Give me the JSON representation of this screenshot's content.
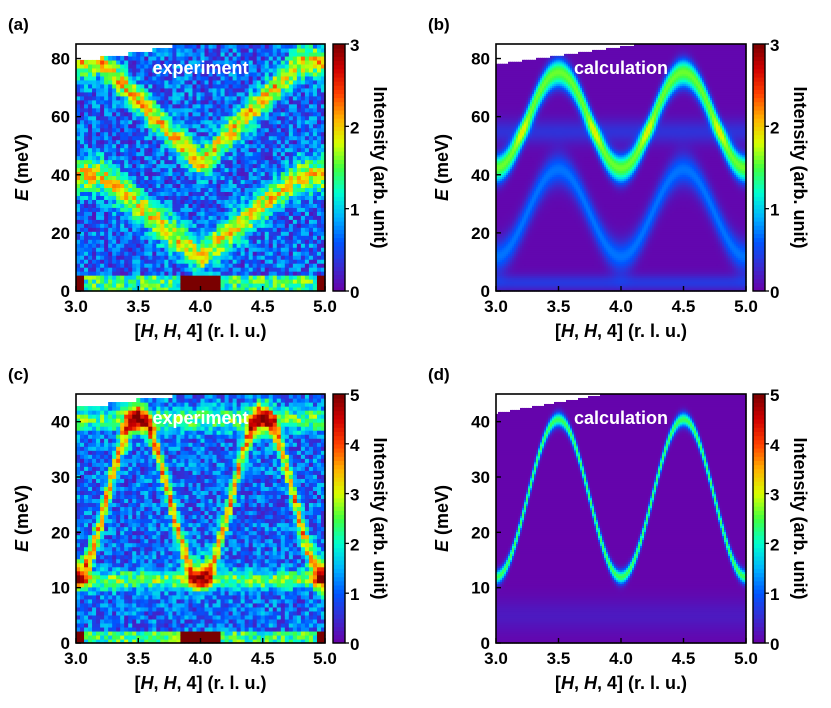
{
  "chart_data": [
    {
      "type": "heatmap",
      "panel_label": "(a)",
      "inset_label": "experiment",
      "xlim": [
        3.0,
        5.0
      ],
      "ylim": [
        0,
        85
      ],
      "xticks": [
        "3.0",
        "3.5",
        "4.0",
        "4.5",
        "5.0"
      ],
      "xtick_values": [
        3.0,
        3.5,
        4.0,
        4.5,
        5.0
      ],
      "yticks": [
        "0",
        "20",
        "40",
        "60",
        "80"
      ],
      "ytick_values": [
        0,
        20,
        40,
        60,
        80
      ],
      "xlabel_parts": [
        "[",
        "H",
        ", ",
        "H",
        ", 4] (r. l. u.)"
      ],
      "ylabel_parts": [
        "E",
        " (meV)"
      ],
      "colorbar": {
        "label": "Intensity (arb. unit)",
        "range": [
          0,
          3
        ],
        "ticks": [
          "0",
          "1",
          "2",
          "3"
        ],
        "tick_values": [
          0,
          1,
          2,
          3
        ]
      },
      "top_limit_curve": {
        "x": [
          3.0,
          3.25,
          3.5,
          3.75,
          3.85
        ],
        "y": [
          79,
          80.5,
          82,
          84,
          85
        ]
      },
      "branches": [
        {
          "shape": "v",
          "min_energy": 44,
          "max_energy": 79,
          "width_meV": 3.5,
          "peak_intensity": 1.4
        },
        {
          "shape": "v",
          "min_energy": 12,
          "max_energy": 40,
          "width_meV": 4,
          "peak_intensity": 1.3
        }
      ],
      "background_intensity": 0.45,
      "noise": 0.9,
      "elastic_line": {
        "max_energy": 5,
        "intensity": 3.0
      }
    },
    {
      "type": "heatmap",
      "panel_label": "(b)",
      "inset_label": "calculation",
      "xlim": [
        3.0,
        5.0
      ],
      "ylim": [
        0,
        85
      ],
      "xticks": [
        "3.0",
        "3.5",
        "4.0",
        "4.5",
        "5.0"
      ],
      "xtick_values": [
        3.0,
        3.5,
        4.0,
        4.5,
        5.0
      ],
      "yticks": [
        "0",
        "20",
        "40",
        "60",
        "80"
      ],
      "ytick_values": [
        0,
        20,
        40,
        60,
        80
      ],
      "xlabel_parts": [
        "[",
        "H",
        ", ",
        "H",
        ", 4] (r. l. u.)"
      ],
      "ylabel_parts": [
        "E",
        " (meV)"
      ],
      "colorbar": {
        "label": "Intensity (arb. unit)",
        "range": [
          0,
          3
        ],
        "ticks": [
          "0",
          "1",
          "2",
          "3"
        ],
        "tick_values": [
          0,
          1,
          2,
          3
        ]
      },
      "top_limit_curve": {
        "x": [
          3.0,
          3.5,
          4.0,
          4.5,
          5.0
        ],
        "y": [
          78,
          81,
          84,
          87,
          90
        ]
      },
      "branches": [
        {
          "shape": "cos",
          "min_energy": 44,
          "max_energy": 77,
          "width_meV": 2.5,
          "peak_intensity": 1.15
        },
        {
          "shape": "cos",
          "min_energy": 40,
          "max_energy": 73,
          "width_meV": 2.5,
          "peak_intensity": 0.95
        },
        {
          "shape": "cos",
          "min_energy": 12,
          "max_energy": 42,
          "width_meV": 4,
          "peak_intensity": 0.65
        },
        {
          "shape": "flat",
          "energy": 55,
          "width_meV": 3,
          "peak_intensity": 0.3
        },
        {
          "shape": "flat",
          "energy": 3,
          "width_meV": 2,
          "peak_intensity": 0.35
        }
      ],
      "background_intensity": 0.05,
      "noise": 0,
      "elastic_line": null
    },
    {
      "type": "heatmap",
      "panel_label": "(c)",
      "inset_label": "experiment",
      "xlim": [
        3.0,
        5.0
      ],
      "ylim": [
        0,
        45
      ],
      "xticks": [
        "3.0",
        "3.5",
        "4.0",
        "4.5",
        "5.0"
      ],
      "xtick_values": [
        3.0,
        3.5,
        4.0,
        4.5,
        5.0
      ],
      "yticks": [
        "0",
        "10",
        "20",
        "30",
        "40"
      ],
      "ytick_values": [
        0,
        10,
        20,
        30,
        40
      ],
      "xlabel_parts": [
        "[",
        "H",
        ", ",
        "H",
        ", 4] (r. l. u.)"
      ],
      "ylabel_parts": [
        "E",
        " (meV)"
      ],
      "colorbar": {
        "label": "Intensity (arb. unit)",
        "range": [
          0,
          5
        ],
        "ticks": [
          "0",
          "1",
          "2",
          "3",
          "4",
          "5"
        ],
        "tick_values": [
          0,
          1,
          2,
          3,
          4,
          5
        ]
      },
      "top_limit_curve": {
        "x": [
          3.0,
          3.25,
          3.5,
          3.75,
          3.9
        ],
        "y": [
          42.5,
          43.2,
          44,
          44.6,
          45
        ]
      },
      "branches": [
        {
          "shape": "cos",
          "min_energy": 12,
          "max_energy": 41,
          "width_meV": 2,
          "peak_intensity": 2.6
        },
        {
          "shape": "flat",
          "energy": 11.5,
          "width_meV": 1.2,
          "peak_intensity": 1.6
        },
        {
          "shape": "flat",
          "energy": 40.5,
          "width_meV": 1.5,
          "peak_intensity": 1.4
        }
      ],
      "background_intensity": 0.8,
      "noise": 1.4,
      "elastic_line": {
        "max_energy": 2.5,
        "intensity": 5.0
      }
    },
    {
      "type": "heatmap",
      "panel_label": "(d)",
      "inset_label": "calculation",
      "xlim": [
        3.0,
        5.0
      ],
      "ylim": [
        0,
        45
      ],
      "xticks": [
        "3.0",
        "3.5",
        "4.0",
        "4.5",
        "5.0"
      ],
      "xtick_values": [
        3.0,
        3.5,
        4.0,
        4.5,
        5.0
      ],
      "yticks": [
        "0",
        "10",
        "20",
        "30",
        "40"
      ],
      "ytick_values": [
        0,
        10,
        20,
        30,
        40
      ],
      "xlabel_parts": [
        "[",
        "H",
        ", ",
        "H",
        ", 4] (r. l. u.)"
      ],
      "ylabel_parts": [
        "E",
        " (meV)"
      ],
      "colorbar": {
        "label": "Intensity (arb. unit)",
        "range": [
          0,
          5
        ],
        "ticks": [
          "0",
          "1",
          "2",
          "3",
          "4",
          "5"
        ],
        "tick_values": [
          0,
          1,
          2,
          3,
          4,
          5
        ]
      },
      "top_limit_curve": {
        "x": [
          3.0,
          3.5,
          4.0,
          4.5,
          5.0
        ],
        "y": [
          41.5,
          43.5,
          45.5,
          47.5,
          49.5
        ]
      },
      "branches": [
        {
          "shape": "cos",
          "min_energy": 12,
          "max_energy": 40.5,
          "width_meV": 0.9,
          "peak_intensity": 2.4
        },
        {
          "shape": "flat",
          "energy": 5,
          "width_meV": 2.2,
          "peak_intensity": 0.25
        }
      ],
      "background_intensity": 0.05,
      "noise": 0,
      "elastic_line": null
    }
  ],
  "colors": {
    "axis": "#000000",
    "inset_text": "#ffffff",
    "colormap": [
      "#ffffff",
      "#6a00a8",
      "#3a2ad0",
      "#0055ff",
      "#00b4ff",
      "#00ffd0",
      "#40ff40",
      "#d8ff00",
      "#ffb000",
      "#ff4000",
      "#d00000",
      "#7a0000"
    ]
  }
}
